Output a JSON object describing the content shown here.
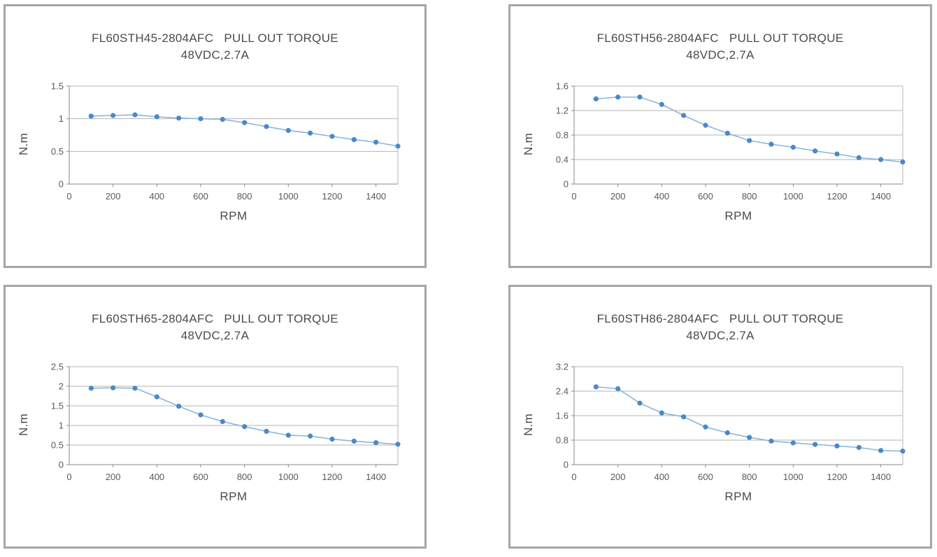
{
  "page": {
    "background": "#ffffff"
  },
  "style": {
    "panel_border": "#a6a6a6",
    "grid_color": "#b5b5b5",
    "axis_color": "#8a8a8a",
    "title_text_color": "#4a4a4a",
    "tick_text_color": "#595959",
    "accent_marker": "#4a89c8",
    "accent_line": "#8ab5dc"
  },
  "chart_data": [
    {
      "type": "line",
      "title": "FL60STH45-2804AFC   PULL OUT TORQUE",
      "subtitle": "48VDC,2.7A",
      "xlabel": "RPM",
      "ylabel": "N.m",
      "legend": "none",
      "grid": "horizontal",
      "x": [
        100,
        200,
        300,
        400,
        500,
        600,
        700,
        800,
        900,
        1000,
        1100,
        1200,
        1300,
        1400,
        1500
      ],
      "values": [
        1.04,
        1.05,
        1.06,
        1.03,
        1.01,
        1.0,
        0.99,
        0.94,
        0.88,
        0.82,
        0.78,
        0.73,
        0.68,
        0.64,
        0.58
      ],
      "xlim": [
        0,
        1500
      ],
      "ylim": [
        0,
        1.5
      ],
      "xticks": [
        0,
        200,
        400,
        600,
        800,
        1000,
        1200,
        1400
      ],
      "yticks": [
        0,
        0.5,
        1,
        1.5
      ],
      "ytick_labels": [
        "0",
        "0.5",
        "1",
        "1.5"
      ]
    },
    {
      "type": "line",
      "title": "FL60STH56-2804AFC   PULL OUT TORQUE",
      "subtitle": "48VDC,2.7A",
      "xlabel": "RPM",
      "ylabel": "N.m",
      "legend": "none",
      "grid": "horizontal",
      "x": [
        100,
        200,
        300,
        400,
        500,
        600,
        700,
        800,
        900,
        1000,
        1100,
        1200,
        1300,
        1400,
        1500
      ],
      "values": [
        1.39,
        1.42,
        1.42,
        1.3,
        1.12,
        0.96,
        0.83,
        0.71,
        0.65,
        0.6,
        0.54,
        0.49,
        0.43,
        0.4,
        0.36
      ],
      "xlim": [
        0,
        1500
      ],
      "ylim": [
        0,
        1.6
      ],
      "xticks": [
        0,
        200,
        400,
        600,
        800,
        1000,
        1200,
        1400
      ],
      "yticks": [
        0,
        0.4,
        0.8,
        1.2,
        1.6
      ],
      "ytick_labels": [
        "0",
        "0.4",
        "0.8",
        "1.2",
        "1.6"
      ]
    },
    {
      "type": "line",
      "title": "FL60STH65-2804AFC   PULL OUT TORQUE",
      "subtitle": "48VDC,2.7A",
      "xlabel": "RPM",
      "ylabel": "N.m",
      "legend": "none",
      "grid": "horizontal",
      "x": [
        100,
        200,
        300,
        400,
        500,
        600,
        700,
        800,
        900,
        1000,
        1100,
        1200,
        1300,
        1400,
        1500
      ],
      "values": [
        1.95,
        1.96,
        1.95,
        1.73,
        1.49,
        1.27,
        1.1,
        0.97,
        0.85,
        0.75,
        0.73,
        0.65,
        0.6,
        0.56,
        0.52
      ],
      "xlim": [
        0,
        1500
      ],
      "ylim": [
        0,
        2.5
      ],
      "xticks": [
        0,
        200,
        400,
        600,
        800,
        1000,
        1200,
        1400
      ],
      "yticks": [
        0,
        0.5,
        1,
        1.5,
        2,
        2.5
      ],
      "ytick_labels": [
        "0",
        "0.5",
        "1",
        "1.5",
        "2",
        "2.5"
      ]
    },
    {
      "type": "line",
      "title": "FL60STH86-2804AFC   PULL OUT TORQUE",
      "subtitle": "48VDC,2.7A",
      "xlabel": "RPM",
      "ylabel": "N.m",
      "legend": "none",
      "grid": "horizontal",
      "x": [
        100,
        200,
        300,
        400,
        500,
        600,
        700,
        800,
        900,
        1000,
        1100,
        1200,
        1300,
        1400,
        1500
      ],
      "values": [
        2.54,
        2.48,
        2.01,
        1.69,
        1.56,
        1.23,
        1.04,
        0.89,
        0.77,
        0.71,
        0.66,
        0.61,
        0.56,
        0.46,
        0.44
      ],
      "xlim": [
        0,
        1500
      ],
      "ylim": [
        0,
        3.2
      ],
      "xticks": [
        0,
        200,
        400,
        600,
        800,
        1000,
        1200,
        1400
      ],
      "yticks": [
        0,
        0.8,
        1.6,
        2.4,
        3.2
      ],
      "ytick_labels": [
        "0",
        "0.8",
        "1.6",
        "2.4",
        "3.2"
      ]
    }
  ]
}
